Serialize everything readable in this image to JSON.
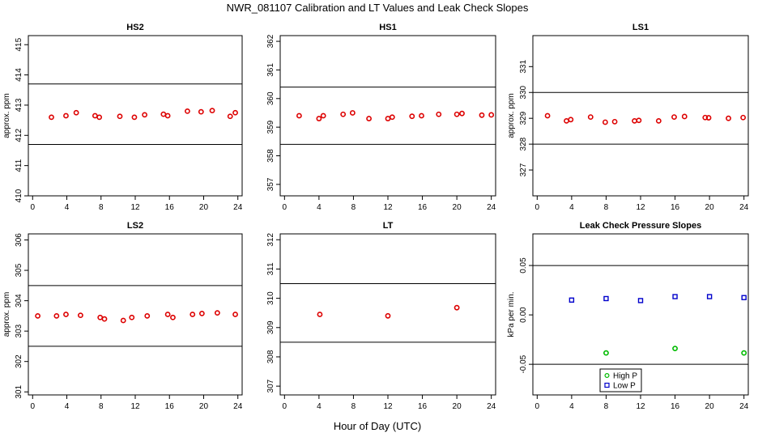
{
  "figure": {
    "title": "NWR_081107  Calibration and LT Values and Leak Check Slopes",
    "xlabel": "Hour of Day (UTC)"
  },
  "colors": {
    "red": "#dd0000",
    "green": "#00bb00",
    "blue": "#0000cc",
    "axis": "#000000"
  },
  "chart_data": [
    {
      "type": "scatter",
      "title": "HS2",
      "ylabel": "approx. ppm",
      "xlim": [
        -0.5,
        24.5
      ],
      "ylim": [
        410,
        415.3
      ],
      "xticks": [
        0,
        4,
        8,
        12,
        16,
        20,
        24
      ],
      "yticks": [
        410,
        411,
        412,
        413,
        414,
        415
      ],
      "hlines": [
        413.7,
        411.7
      ],
      "series": [
        {
          "color": "red",
          "marker": "circle",
          "x": [
            2.2,
            3.9,
            5.1,
            7.3,
            7.8,
            10.2,
            11.9,
            13.1,
            15.3,
            15.8,
            18.1,
            19.7,
            21.0,
            23.1,
            23.7
          ],
          "y": [
            412.6,
            412.65,
            412.75,
            412.65,
            412.6,
            412.63,
            412.6,
            412.68,
            412.7,
            412.65,
            412.8,
            412.78,
            412.82,
            412.63,
            412.75
          ]
        }
      ]
    },
    {
      "type": "scatter",
      "title": "HS1",
      "ylabel": "",
      "xlim": [
        -0.5,
        24.5
      ],
      "ylim": [
        356.6,
        362.2
      ],
      "xticks": [
        0,
        4,
        8,
        12,
        16,
        20,
        24
      ],
      "yticks": [
        357,
        358,
        359,
        360,
        361,
        362
      ],
      "hlines": [
        360.4,
        358.4
      ],
      "series": [
        {
          "color": "red",
          "marker": "circle",
          "x": [
            1.7,
            4.0,
            4.5,
            6.8,
            7.9,
            9.8,
            12.0,
            12.5,
            14.8,
            15.9,
            17.9,
            20.0,
            20.6,
            22.9,
            24.0
          ],
          "y": [
            359.4,
            359.3,
            359.4,
            359.45,
            359.5,
            359.3,
            359.3,
            359.35,
            359.38,
            359.4,
            359.45,
            359.45,
            359.48,
            359.42,
            359.43
          ]
        }
      ]
    },
    {
      "type": "scatter",
      "title": "LS1",
      "ylabel": "approx. ppm",
      "xlim": [
        -0.5,
        24.5
      ],
      "ylim": [
        326,
        332.2
      ],
      "xticks": [
        0,
        4,
        8,
        12,
        16,
        20,
        24
      ],
      "yticks": [
        327,
        328,
        329,
        330,
        331
      ],
      "hlines": [
        330,
        328
      ],
      "series": [
        {
          "color": "red",
          "marker": "circle",
          "x": [
            1.2,
            3.4,
            3.9,
            6.2,
            7.9,
            9.0,
            11.3,
            11.8,
            14.1,
            15.9,
            17.1,
            19.5,
            19.9,
            22.2,
            23.9
          ],
          "y": [
            329.1,
            328.9,
            328.95,
            329.05,
            328.85,
            328.87,
            328.9,
            328.92,
            328.9,
            329.05,
            329.07,
            329.03,
            329.02,
            329.0,
            329.03
          ]
        }
      ]
    },
    {
      "type": "scatter",
      "title": "LS2",
      "ylabel": "approx. ppm",
      "xlim": [
        -0.5,
        24.5
      ],
      "ylim": [
        300.9,
        306.2
      ],
      "xticks": [
        0,
        4,
        8,
        12,
        16,
        20,
        24
      ],
      "yticks": [
        301,
        302,
        303,
        304,
        305,
        306
      ],
      "hlines": [
        304.5,
        302.5
      ],
      "series": [
        {
          "color": "red",
          "marker": "circle",
          "x": [
            0.6,
            2.8,
            3.9,
            5.6,
            7.9,
            8.4,
            10.6,
            11.6,
            13.4,
            15.8,
            16.4,
            18.7,
            19.8,
            21.6,
            23.7
          ],
          "y": [
            303.5,
            303.5,
            303.55,
            303.52,
            303.45,
            303.4,
            303.35,
            303.45,
            303.5,
            303.55,
            303.45,
            303.55,
            303.58,
            303.6,
            303.55
          ]
        }
      ]
    },
    {
      "type": "scatter",
      "title": "LT",
      "ylabel": "",
      "xlim": [
        -0.5,
        24.5
      ],
      "ylim": [
        306.7,
        312.2
      ],
      "xticks": [
        0,
        4,
        8,
        12,
        16,
        20,
        24
      ],
      "yticks": [
        307,
        308,
        309,
        310,
        311,
        312
      ],
      "hlines": [
        310.5,
        308.5
      ],
      "series": [
        {
          "color": "red",
          "marker": "circle",
          "x": [
            4.1,
            12.0,
            20.0
          ],
          "y": [
            309.45,
            309.4,
            309.68
          ]
        }
      ]
    },
    {
      "type": "scatter",
      "title": "Leak Check Pressure Slopes",
      "ylabel": "kPa per min.",
      "xlim": [
        -0.5,
        24.5
      ],
      "ylim": [
        -0.081,
        0.082
      ],
      "xticks": [
        0,
        4,
        8,
        12,
        16,
        20,
        24
      ],
      "yticks": [
        -0.05,
        0.0,
        0.05
      ],
      "ytick_labels": [
        "-0.05",
        "0.00",
        "0.05"
      ],
      "hlines": [
        0.05,
        -0.05
      ],
      "legend": {
        "position": "bottom-center",
        "entries": [
          "High P",
          "Low P"
        ]
      },
      "series": [
        {
          "name": "High P",
          "color": "green",
          "marker": "circle",
          "x": [
            8.0,
            16.0,
            24.0
          ],
          "y": [
            -0.0385,
            -0.034,
            -0.0385
          ]
        },
        {
          "name": "Low P",
          "color": "blue",
          "marker": "square",
          "x": [
            4.0,
            8.0,
            12.0,
            16.0,
            20.0,
            24.0
          ],
          "y": [
            0.015,
            0.0165,
            0.0145,
            0.0185,
            0.0185,
            0.0175
          ]
        }
      ]
    }
  ]
}
